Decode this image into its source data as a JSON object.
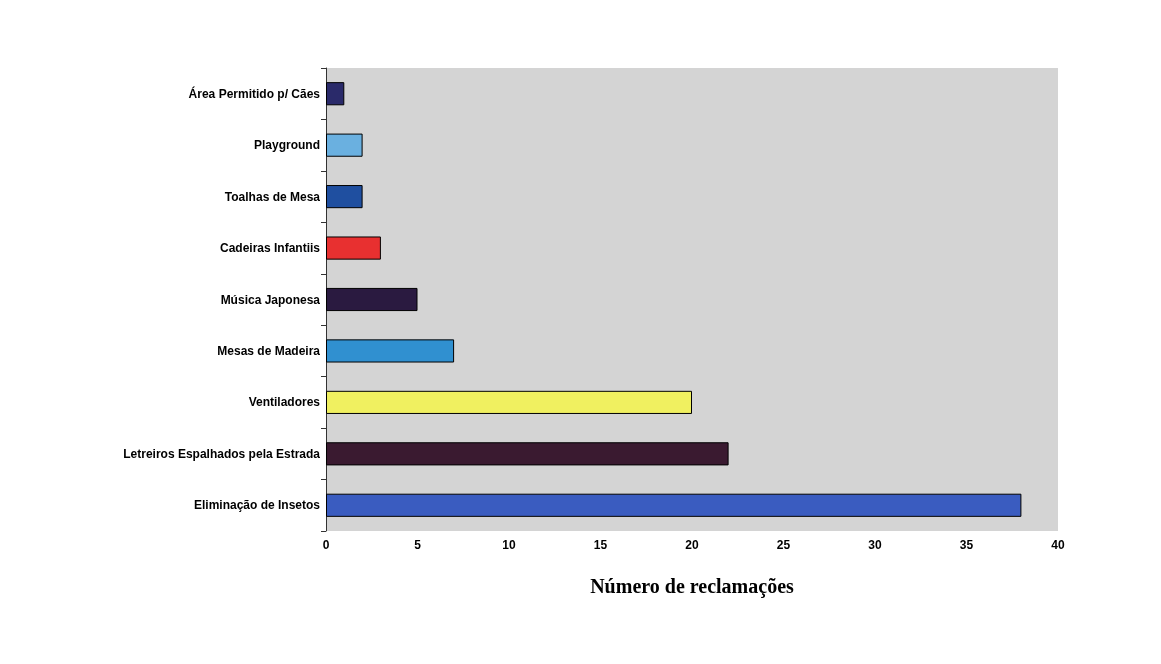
{
  "chart_data": {
    "type": "bar",
    "orientation": "horizontal",
    "xlabel": "Número de reclamações",
    "categories": [
      "Área Permitido p/ Cães",
      "Playground",
      "Toalhas de Mesa",
      "Cadeiras Infantiis",
      "Música Japonesa",
      "Mesas de Madeira",
      "Ventiladores",
      "Letreiros Espalhados pela Estrada",
      "Eliminação de Insetos"
    ],
    "values": [
      1,
      2,
      2,
      3,
      5,
      7,
      20,
      22,
      38
    ],
    "colors": [
      "#2a2a6a",
      "#6ab0e0",
      "#1f4fa0",
      "#e83030",
      "#2a1a40",
      "#3090d0",
      "#f0f060",
      "#3a1a30",
      "#3a5cc0"
    ],
    "xlim": [
      0,
      40
    ],
    "xticks": [
      0,
      5,
      10,
      15,
      20,
      25,
      30,
      35,
      40
    ],
    "grid": false
  }
}
